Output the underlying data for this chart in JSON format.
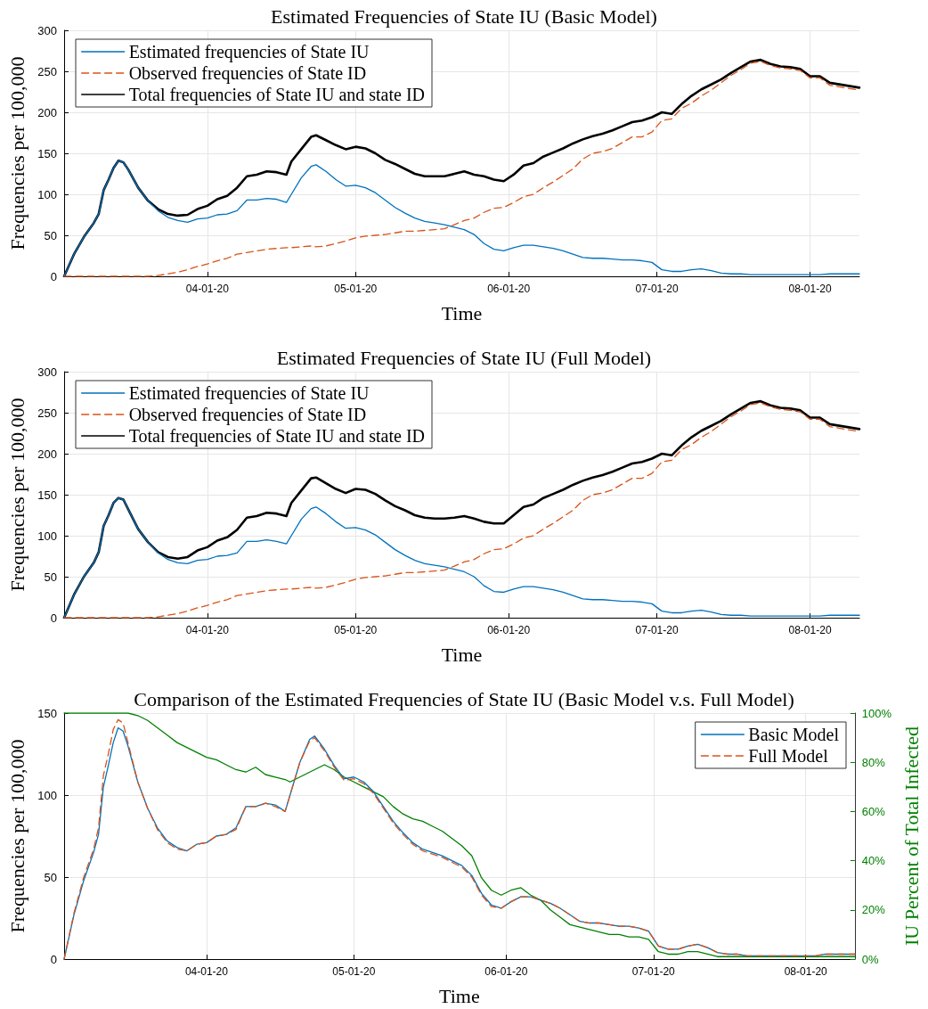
{
  "chart_data": [
    {
      "type": "line",
      "title": "Estimated Frequencies of State IU (Basic Model)",
      "xlabel": "Time",
      "ylabel": "Frequencies per 100,000",
      "x": [
        "2020-03-03",
        "2020-03-05",
        "2020-03-07",
        "2020-03-09",
        "2020-03-10",
        "2020-03-11",
        "2020-03-12",
        "2020-03-13",
        "2020-03-14",
        "2020-03-15",
        "2020-03-16",
        "2020-03-18",
        "2020-03-20",
        "2020-03-22",
        "2020-03-24",
        "2020-03-26",
        "2020-03-28",
        "2020-03-30",
        "2020-04-01",
        "2020-04-03",
        "2020-04-05",
        "2020-04-07",
        "2020-04-09",
        "2020-04-11",
        "2020-04-13",
        "2020-04-15",
        "2020-04-17",
        "2020-04-18",
        "2020-04-20",
        "2020-04-22",
        "2020-04-23",
        "2020-04-25",
        "2020-04-27",
        "2020-04-29",
        "2020-05-01",
        "2020-05-03",
        "2020-05-05",
        "2020-05-07",
        "2020-05-09",
        "2020-05-11",
        "2020-05-13",
        "2020-05-15",
        "2020-05-17",
        "2020-05-19",
        "2020-05-21",
        "2020-05-23",
        "2020-05-25",
        "2020-05-27",
        "2020-05-29",
        "2020-05-31",
        "2020-06-02",
        "2020-06-04",
        "2020-06-06",
        "2020-06-08",
        "2020-06-10",
        "2020-06-12",
        "2020-06-14",
        "2020-06-16",
        "2020-06-18",
        "2020-06-20",
        "2020-06-22",
        "2020-06-24",
        "2020-06-26",
        "2020-06-28",
        "2020-06-30",
        "2020-07-02",
        "2020-07-04",
        "2020-07-06",
        "2020-07-08",
        "2020-07-10",
        "2020-07-12",
        "2020-07-14",
        "2020-07-16",
        "2020-07-18",
        "2020-07-20",
        "2020-07-22",
        "2020-07-24",
        "2020-07-26",
        "2020-07-28",
        "2020-07-30",
        "2020-08-01",
        "2020-08-03",
        "2020-08-05",
        "2020-08-08",
        "2020-08-11"
      ],
      "series": [
        {
          "name": "Estimated frequencies of State IU",
          "color": "#0072bd",
          "line_style": "solid",
          "values": [
            0,
            27,
            48,
            65,
            76,
            105,
            118,
            132,
            141,
            139,
            130,
            108,
            92,
            80,
            72,
            68,
            66,
            70,
            71,
            75,
            76,
            80,
            93,
            93,
            95,
            94,
            90,
            100,
            120,
            134,
            136,
            128,
            118,
            110,
            111,
            108,
            102,
            93,
            84,
            77,
            71,
            67,
            65,
            63,
            60,
            57,
            51,
            40,
            33,
            31,
            35,
            38,
            38,
            36,
            34,
            31,
            27,
            23,
            22,
            22,
            21,
            20,
            20,
            19,
            17,
            8,
            6,
            6,
            8,
            9,
            7,
            4,
            3,
            3,
            2,
            2,
            2,
            2,
            2,
            2,
            2,
            2,
            3,
            3,
            3
          ]
        },
        {
          "name": "Observed frequencies of State ID",
          "color": "#d95319",
          "line_style": "dashed",
          "values": [
            0,
            0,
            0,
            0,
            0,
            0,
            0,
            0,
            0,
            0,
            0,
            0,
            0,
            1,
            3,
            5,
            8,
            12,
            15,
            19,
            22,
            27,
            29,
            31,
            33,
            34,
            35,
            35,
            36,
            37,
            36,
            37,
            40,
            43,
            47,
            49,
            50,
            51,
            53,
            55,
            55,
            56,
            57,
            58,
            63,
            68,
            71,
            78,
            83,
            84,
            90,
            97,
            100,
            108,
            115,
            123,
            131,
            143,
            150,
            152,
            156,
            163,
            170,
            170,
            176,
            190,
            192,
            205,
            211,
            220,
            227,
            236,
            245,
            252,
            260,
            262,
            257,
            254,
            253,
            251,
            242,
            242,
            233,
            230,
            227
          ]
        },
        {
          "name": "Total frequencies of State IU and state ID",
          "color": "#000000",
          "line_style": "solid",
          "values": [
            0,
            27,
            48,
            65,
            76,
            105,
            118,
            132,
            141,
            139,
            130,
            108,
            92,
            82,
            76,
            74,
            75,
            82,
            86,
            94,
            98,
            108,
            122,
            124,
            128,
            127,
            124,
            140,
            155,
            170,
            172,
            166,
            160,
            155,
            158,
            156,
            150,
            142,
            137,
            131,
            125,
            122,
            122,
            122,
            125,
            128,
            124,
            122,
            118,
            116,
            124,
            135,
            138,
            146,
            151,
            156,
            162,
            167,
            171,
            174,
            178,
            183,
            188,
            190,
            194,
            200,
            198,
            210,
            220,
            228,
            234,
            240,
            248,
            255,
            262,
            264,
            259,
            256,
            255,
            253,
            244,
            244,
            236,
            233,
            230
          ]
        }
      ],
      "xlim": [
        "2020-03-03",
        "2020-08-11"
      ],
      "xticks": [
        {
          "value": "2020-04-01",
          "label": "04-01-20"
        },
        {
          "value": "2020-05-01",
          "label": "05-01-20"
        },
        {
          "value": "2020-06-01",
          "label": "06-01-20"
        },
        {
          "value": "2020-07-01",
          "label": "07-01-20"
        },
        {
          "value": "2020-08-01",
          "label": "08-01-20"
        }
      ],
      "ylim": [
        0,
        300
      ],
      "yticks": [
        0,
        50,
        100,
        150,
        200,
        250,
        300
      ],
      "grid": true,
      "legend": "top left",
      "marker": "none"
    },
    {
      "type": "line",
      "title": "Estimated Frequencies of State IU (Full Model)",
      "xlabel": "Time",
      "ylabel": "Frequencies per 100,000",
      "x": [
        "2020-03-03",
        "2020-03-05",
        "2020-03-07",
        "2020-03-09",
        "2020-03-10",
        "2020-03-11",
        "2020-03-12",
        "2020-03-13",
        "2020-03-14",
        "2020-03-15",
        "2020-03-16",
        "2020-03-18",
        "2020-03-20",
        "2020-03-22",
        "2020-03-24",
        "2020-03-26",
        "2020-03-28",
        "2020-03-30",
        "2020-04-01",
        "2020-04-03",
        "2020-04-05",
        "2020-04-07",
        "2020-04-09",
        "2020-04-11",
        "2020-04-13",
        "2020-04-15",
        "2020-04-17",
        "2020-04-18",
        "2020-04-20",
        "2020-04-22",
        "2020-04-23",
        "2020-04-25",
        "2020-04-27",
        "2020-04-29",
        "2020-05-01",
        "2020-05-03",
        "2020-05-05",
        "2020-05-07",
        "2020-05-09",
        "2020-05-11",
        "2020-05-13",
        "2020-05-15",
        "2020-05-17",
        "2020-05-19",
        "2020-05-21",
        "2020-05-23",
        "2020-05-25",
        "2020-05-27",
        "2020-05-29",
        "2020-05-31",
        "2020-06-02",
        "2020-06-04",
        "2020-06-06",
        "2020-06-08",
        "2020-06-10",
        "2020-06-12",
        "2020-06-14",
        "2020-06-16",
        "2020-06-18",
        "2020-06-20",
        "2020-06-22",
        "2020-06-24",
        "2020-06-26",
        "2020-06-28",
        "2020-06-30",
        "2020-07-02",
        "2020-07-04",
        "2020-07-06",
        "2020-07-08",
        "2020-07-10",
        "2020-07-12",
        "2020-07-14",
        "2020-07-16",
        "2020-07-18",
        "2020-07-20",
        "2020-07-22",
        "2020-07-24",
        "2020-07-26",
        "2020-07-28",
        "2020-07-30",
        "2020-08-01",
        "2020-08-03",
        "2020-08-05",
        "2020-08-08",
        "2020-08-11"
      ],
      "series": [
        {
          "name": "Estimated frequencies of State IU",
          "color": "#0072bd",
          "line_style": "solid",
          "values": [
            0,
            28,
            50,
            67,
            80,
            112,
            125,
            140,
            146,
            144,
            132,
            108,
            92,
            79,
            71,
            67,
            66,
            70,
            71,
            75,
            76,
            79,
            93,
            93,
            95,
            93,
            90,
            100,
            120,
            133,
            135,
            127,
            117,
            109,
            110,
            107,
            101,
            92,
            83,
            76,
            70,
            66,
            64,
            62,
            59,
            56,
            50,
            39,
            32,
            31,
            35,
            38,
            38,
            36,
            34,
            31,
            27,
            23,
            22,
            22,
            21,
            20,
            20,
            19,
            17,
            8,
            6,
            6,
            8,
            9,
            7,
            4,
            3,
            3,
            2,
            2,
            2,
            2,
            2,
            2,
            2,
            2,
            3,
            3,
            3
          ]
        },
        {
          "name": "Observed frequencies of State ID",
          "color": "#d95319",
          "line_style": "dashed",
          "values": [
            0,
            0,
            0,
            0,
            0,
            0,
            0,
            0,
            0,
            0,
            0,
            0,
            0,
            1,
            3,
            5,
            8,
            12,
            15,
            19,
            22,
            27,
            29,
            31,
            33,
            34,
            35,
            35,
            36,
            37,
            36,
            37,
            40,
            43,
            47,
            49,
            50,
            51,
            53,
            55,
            55,
            56,
            57,
            58,
            63,
            68,
            71,
            78,
            83,
            84,
            90,
            97,
            100,
            108,
            115,
            123,
            131,
            143,
            150,
            152,
            156,
            163,
            170,
            170,
            176,
            190,
            192,
            205,
            211,
            220,
            227,
            236,
            245,
            252,
            260,
            262,
            257,
            254,
            253,
            251,
            242,
            242,
            233,
            230,
            227
          ]
        },
        {
          "name": "Total frequencies of State IU and state ID",
          "color": "#000000",
          "line_style": "solid",
          "values": [
            0,
            28,
            50,
            67,
            80,
            112,
            125,
            140,
            146,
            144,
            132,
            108,
            92,
            80,
            74,
            72,
            74,
            82,
            86,
            94,
            98,
            107,
            122,
            124,
            128,
            127,
            124,
            140,
            155,
            170,
            171,
            164,
            157,
            152,
            157,
            156,
            151,
            143,
            136,
            131,
            125,
            122,
            121,
            121,
            122,
            124,
            121,
            117,
            115,
            115,
            125,
            135,
            138,
            146,
            151,
            156,
            162,
            167,
            171,
            174,
            178,
            183,
            188,
            190,
            194,
            200,
            198,
            210,
            220,
            228,
            234,
            240,
            248,
            255,
            262,
            264,
            259,
            256,
            255,
            253,
            244,
            244,
            236,
            233,
            230
          ]
        }
      ],
      "xlim": [
        "2020-03-03",
        "2020-08-11"
      ],
      "xticks": [
        {
          "value": "2020-04-01",
          "label": "04-01-20"
        },
        {
          "value": "2020-05-01",
          "label": "05-01-20"
        },
        {
          "value": "2020-06-01",
          "label": "06-01-20"
        },
        {
          "value": "2020-07-01",
          "label": "07-01-20"
        },
        {
          "value": "2020-08-01",
          "label": "08-01-20"
        }
      ],
      "ylim": [
        0,
        300
      ],
      "yticks": [
        0,
        50,
        100,
        150,
        200,
        250,
        300
      ],
      "grid": true,
      "legend": "top left",
      "marker": "none"
    },
    {
      "type": "line",
      "title": "Comparison of the Estimated Frequencies of State IU (Basic Model v.s. Full Model)",
      "xlabel": "Time",
      "ylabel": "Frequencies per 100,000",
      "y2label": "IU Percent of Total Infected",
      "x": [
        "2020-03-03",
        "2020-03-05",
        "2020-03-07",
        "2020-03-09",
        "2020-03-10",
        "2020-03-11",
        "2020-03-12",
        "2020-03-13",
        "2020-03-14",
        "2020-03-15",
        "2020-03-16",
        "2020-03-18",
        "2020-03-20",
        "2020-03-22",
        "2020-03-24",
        "2020-03-26",
        "2020-03-28",
        "2020-03-30",
        "2020-04-01",
        "2020-04-03",
        "2020-04-05",
        "2020-04-07",
        "2020-04-09",
        "2020-04-11",
        "2020-04-13",
        "2020-04-15",
        "2020-04-17",
        "2020-04-18",
        "2020-04-20",
        "2020-04-22",
        "2020-04-23",
        "2020-04-25",
        "2020-04-27",
        "2020-04-29",
        "2020-05-01",
        "2020-05-03",
        "2020-05-05",
        "2020-05-07",
        "2020-05-09",
        "2020-05-11",
        "2020-05-13",
        "2020-05-15",
        "2020-05-17",
        "2020-05-19",
        "2020-05-21",
        "2020-05-23",
        "2020-05-25",
        "2020-05-27",
        "2020-05-29",
        "2020-05-31",
        "2020-06-02",
        "2020-06-04",
        "2020-06-06",
        "2020-06-08",
        "2020-06-10",
        "2020-06-12",
        "2020-06-14",
        "2020-06-16",
        "2020-06-18",
        "2020-06-20",
        "2020-06-22",
        "2020-06-24",
        "2020-06-26",
        "2020-06-28",
        "2020-06-30",
        "2020-07-02",
        "2020-07-04",
        "2020-07-06",
        "2020-07-08",
        "2020-07-10",
        "2020-07-12",
        "2020-07-14",
        "2020-07-16",
        "2020-07-18",
        "2020-07-20",
        "2020-07-22",
        "2020-07-24",
        "2020-07-26",
        "2020-07-28",
        "2020-07-30",
        "2020-08-01",
        "2020-08-03",
        "2020-08-05",
        "2020-08-08",
        "2020-08-11"
      ],
      "series": [
        {
          "name": "Basic Model",
          "color": "#0072bd",
          "line_style": "solid",
          "values": [
            0,
            27,
            48,
            65,
            76,
            105,
            118,
            132,
            141,
            139,
            130,
            108,
            92,
            80,
            72,
            68,
            66,
            70,
            71,
            75,
            76,
            80,
            93,
            93,
            95,
            94,
            90,
            100,
            120,
            134,
            136,
            128,
            118,
            110,
            111,
            108,
            102,
            93,
            84,
            77,
            71,
            67,
            65,
            63,
            60,
            57,
            51,
            40,
            33,
            31,
            35,
            38,
            38,
            36,
            34,
            31,
            27,
            23,
            22,
            22,
            21,
            20,
            20,
            19,
            17,
            8,
            6,
            6,
            8,
            9,
            7,
            4,
            3,
            3,
            2,
            2,
            2,
            2,
            2,
            2,
            2,
            2,
            3,
            3,
            3
          ]
        },
        {
          "name": "Full Model",
          "color": "#d95319",
          "line_style": "dashed",
          "values": [
            0,
            28,
            50,
            67,
            80,
            112,
            125,
            140,
            146,
            144,
            132,
            108,
            92,
            79,
            71,
            67,
            66,
            70,
            71,
            75,
            76,
            79,
            93,
            93,
            95,
            93,
            90,
            100,
            120,
            133,
            135,
            127,
            117,
            109,
            110,
            107,
            101,
            92,
            83,
            76,
            70,
            66,
            64,
            62,
            59,
            56,
            50,
            39,
            32,
            31,
            35,
            38,
            38,
            36,
            34,
            31,
            27,
            23,
            22,
            22,
            21,
            20,
            20,
            19,
            17,
            8,
            6,
            6,
            8,
            9,
            7,
            4,
            3,
            3,
            2,
            2,
            2,
            2,
            2,
            2,
            2,
            2,
            3,
            3,
            3
          ]
        },
        {
          "color": "#008000",
          "line_style": "solid",
          "axis": "y2",
          "values": [
            100,
            100,
            100,
            100,
            100,
            100,
            100,
            100,
            100,
            100,
            100,
            99,
            97,
            94,
            91,
            88,
            86,
            84,
            82,
            81,
            79,
            77,
            76,
            78,
            75,
            74,
            73,
            72,
            74,
            76,
            77,
            79,
            77,
            74,
            72,
            70,
            68,
            66,
            62,
            59,
            57,
            56,
            54,
            52,
            49,
            46,
            42,
            33,
            28,
            26,
            28,
            29,
            26,
            24,
            20,
            17,
            14,
            13,
            12,
            11,
            10,
            10,
            9,
            9,
            8,
            3,
            2,
            2,
            3,
            3,
            2,
            1,
            1,
            1,
            1,
            1,
            1,
            1,
            1,
            1,
            1,
            1,
            1,
            1,
            1
          ]
        }
      ],
      "xlim": [
        "2020-03-03",
        "2020-08-11"
      ],
      "xticks": [
        {
          "value": "2020-04-01",
          "label": "04-01-20"
        },
        {
          "value": "2020-05-01",
          "label": "05-01-20"
        },
        {
          "value": "2020-06-01",
          "label": "06-01-20"
        },
        {
          "value": "2020-07-01",
          "label": "07-01-20"
        },
        {
          "value": "2020-08-01",
          "label": "08-01-20"
        }
      ],
      "ylim": [
        0,
        150
      ],
      "yticks": [
        0,
        50,
        100,
        150
      ],
      "y2lim": [
        0,
        100
      ],
      "y2ticks": [
        {
          "value": 0,
          "label": "0%"
        },
        {
          "value": 20,
          "label": "20%"
        },
        {
          "value": 40,
          "label": "40%"
        },
        {
          "value": 60,
          "label": "60%"
        },
        {
          "value": 80,
          "label": "80%"
        },
        {
          "value": 100,
          "label": "100%"
        }
      ],
      "grid": true,
      "legend": "top right",
      "marker": "none"
    }
  ]
}
